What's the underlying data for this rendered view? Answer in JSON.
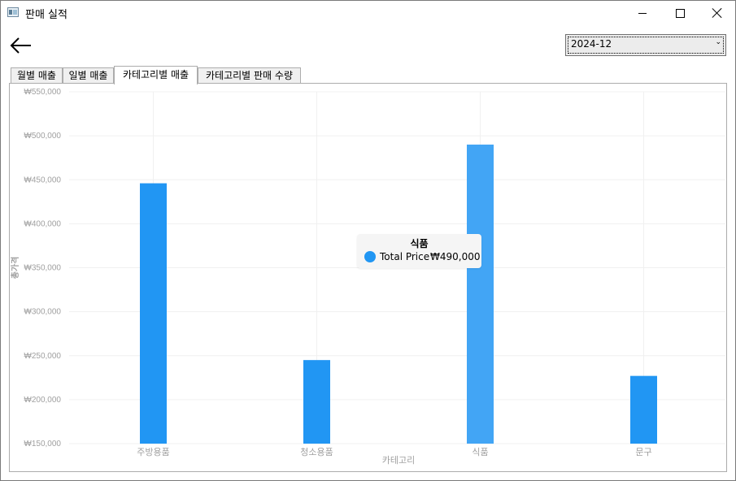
{
  "window": {
    "title": "판매 실적"
  },
  "toolbar": {
    "back_icon": "arrow-left-icon",
    "month_selected": "2024-12"
  },
  "tabs": [
    {
      "label": "월별 매출",
      "active": false
    },
    {
      "label": "일별 매출",
      "active": false
    },
    {
      "label": "카테고리별 매출",
      "active": true
    },
    {
      "label": "카테고리별 판매 수량",
      "active": false
    }
  ],
  "colors": {
    "bar": "#2196f3",
    "bar_highlight": "#42a5f5",
    "axis_text": "#a0a0a0",
    "grid": "#f0f0f0"
  },
  "chart_data": {
    "type": "bar",
    "categories": [
      "주방용품",
      "청소용품",
      "식품",
      "문구"
    ],
    "series": [
      {
        "name": "Total Price",
        "values": [
          446000,
          245000,
          490000,
          227000
        ]
      }
    ],
    "xlabel": "카테고리",
    "ylabel": "총가격",
    "ylim": [
      150000,
      550000
    ],
    "yticks": [
      150000,
      200000,
      250000,
      300000,
      350000,
      400000,
      450000,
      500000,
      550000
    ],
    "ytick_labels": [
      "₩150,000",
      "₩200,000",
      "₩250,000",
      "₩300,000",
      "₩350,000",
      "₩400,000",
      "₩450,000",
      "₩500,000",
      "₩550,000"
    ],
    "grid": true,
    "highlighted_category": "식품",
    "tooltip": {
      "title": "식품",
      "series": "Total Price",
      "value": "₩490,000"
    }
  }
}
